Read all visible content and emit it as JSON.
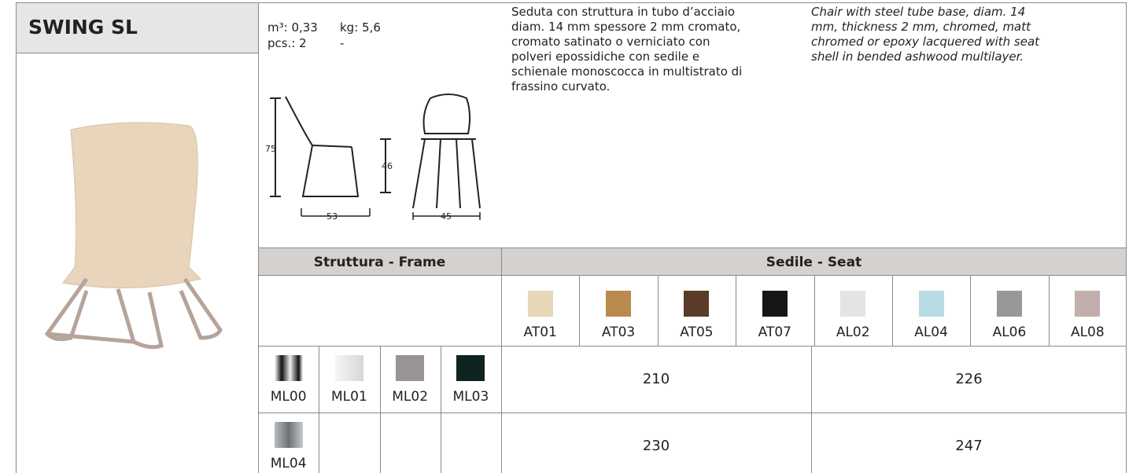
{
  "header": {
    "title": "SWING SL"
  },
  "specs": {
    "volume": "m³: 0,33",
    "weight": "kg: 5,6",
    "pieces": "pcs.: 2",
    "pieces_note": "-"
  },
  "drawing": {
    "height": "75",
    "seat_height": "46",
    "depth": "53",
    "width": "45"
  },
  "description_it": [
    "Seduta con struttura in tubo d’acciaio",
    "diam. 14 mm spessore 2 mm cromato,",
    "cromato satinato o verniciato con",
    "polveri epossidiche con sedile e",
    "schienale monoscocca in multistrato di",
    "frassino curvato."
  ],
  "description_en": [
    "Chair with steel tube base, diam. 14",
    "mm,  thickness 2 mm, chromed, matt",
    "chromed or epoxy lacquered with seat",
    "shell in bended ashwood multilayer."
  ],
  "table": {
    "frame_header": "Struttura - Frame",
    "seat_header": "Sedile - Seat",
    "seat_finishes": [
      {
        "code": "AT01",
        "color": "#e6d7b8"
      },
      {
        "code": "AT03",
        "color": "#b98a4e"
      },
      {
        "code": "AT05",
        "color": "#5a3a28"
      },
      {
        "code": "AT07",
        "color": "#161616"
      },
      {
        "code": "AL02",
        "color": "#e4e4e4"
      },
      {
        "code": "AL04",
        "color": "#b9dbe3"
      },
      {
        "code": "AL06",
        "color": "#9a9896"
      },
      {
        "code": "AL08",
        "color": "#c2aeaa"
      }
    ],
    "frame_finishes": [
      {
        "code": "ML00",
        "color": "linear-gradient(90deg,#fff,#111 25%,#eee 55%,#111 85%,#fff)"
      },
      {
        "code": "ML01",
        "color": "linear-gradient(90deg,#f4f4f4,#d8d8d8)"
      },
      {
        "code": "ML02",
        "color": "#9a9594"
      },
      {
        "code": "ML03",
        "color": "#0f2420"
      },
      {
        "code": "ML04",
        "color": "linear-gradient(90deg,#b9bcbf,#6d7175 50%,#c8cacc)"
      }
    ],
    "prices": [
      [
        210,
        226
      ],
      [
        230,
        247
      ]
    ]
  }
}
